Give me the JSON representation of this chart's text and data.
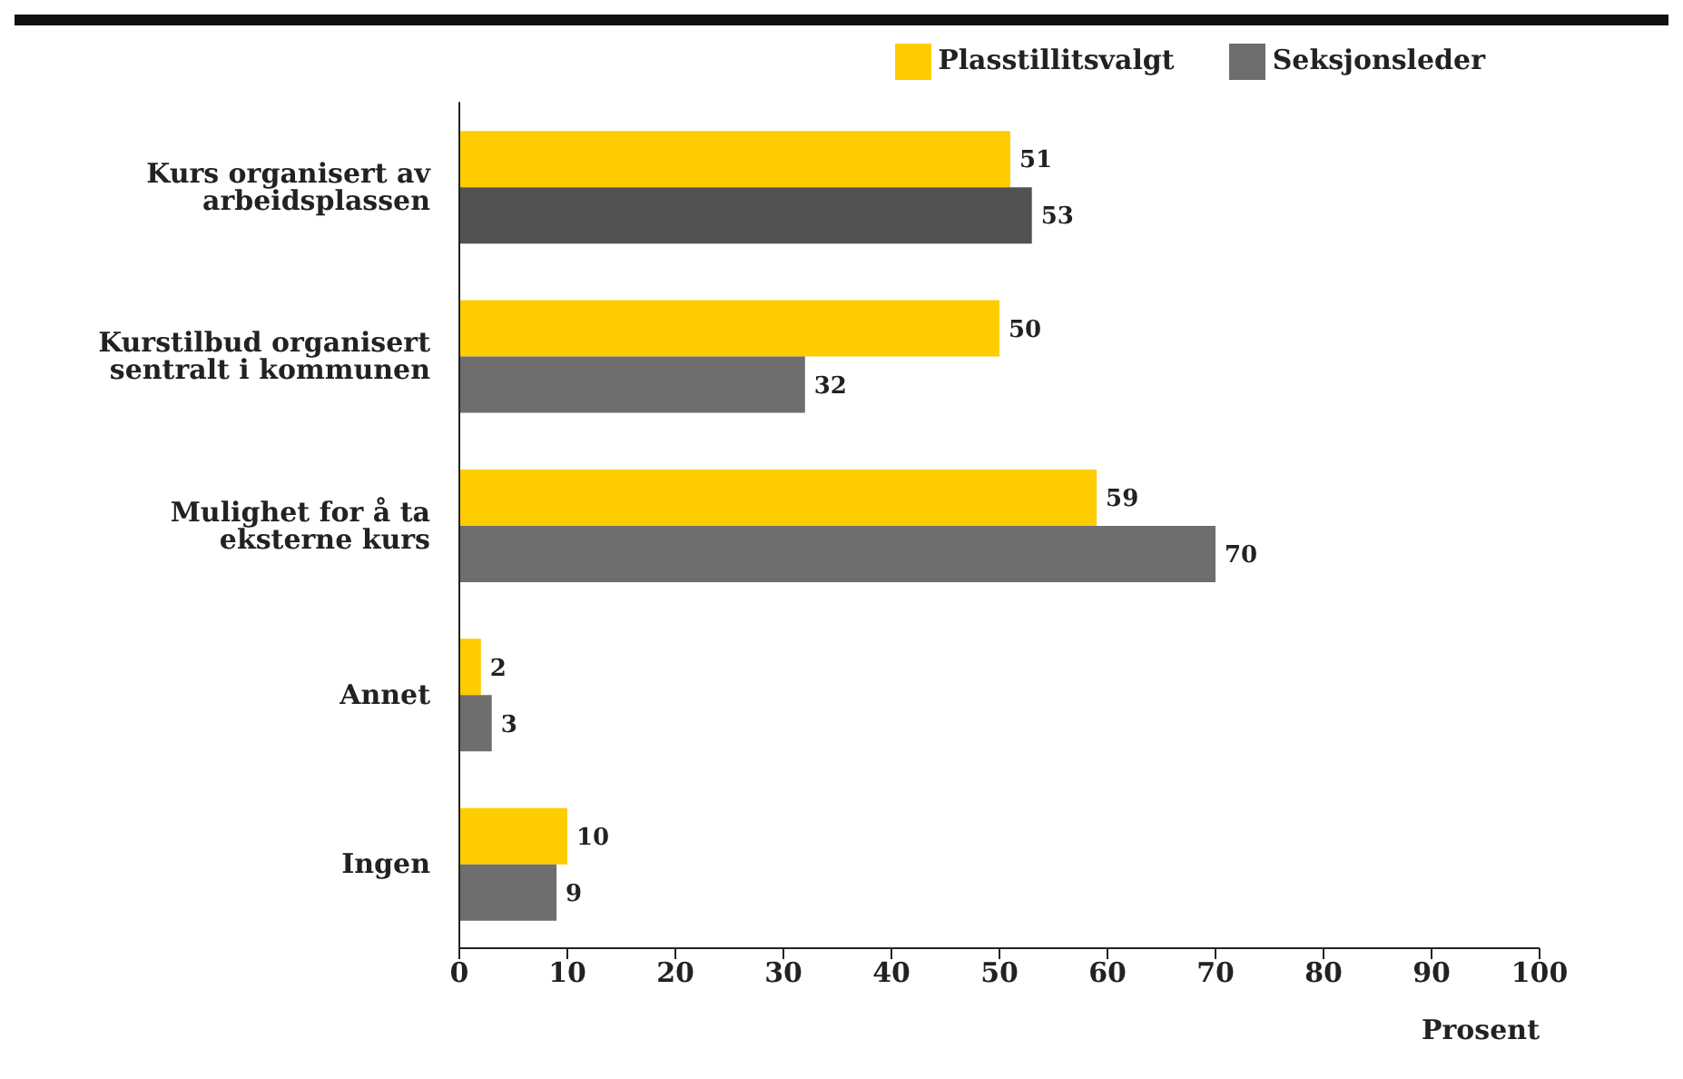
{
  "chart_data": {
    "type": "bar",
    "orientation": "horizontal",
    "xlabel": "Prosent",
    "categories": [
      "Kurs organisert av arbeidsplassen",
      "Kurstilbud organisert sentralt i kommunen",
      "Mulighet for å ta eksterne kurs",
      "Annet",
      "Ingen"
    ],
    "series": [
      {
        "name": "Plasstillitsvalgt",
        "color": "#ffcc00",
        "values": [
          51,
          50,
          59,
          2,
          10
        ]
      },
      {
        "name": "Seksjonsleder",
        "color": "#6e6e6e",
        "colors": [
          "#525252",
          "#6e6e6e",
          "#6e6e6e",
          "#6e6e6e",
          "#6e6e6e"
        ],
        "values": [
          53,
          32,
          70,
          3,
          9
        ]
      }
    ],
    "xlim": [
      0,
      100
    ],
    "xticks": [
      0,
      10,
      20,
      30,
      40,
      50,
      60,
      70,
      80,
      90,
      100
    ],
    "data_labels": true,
    "grid": false,
    "legend": "top right"
  }
}
